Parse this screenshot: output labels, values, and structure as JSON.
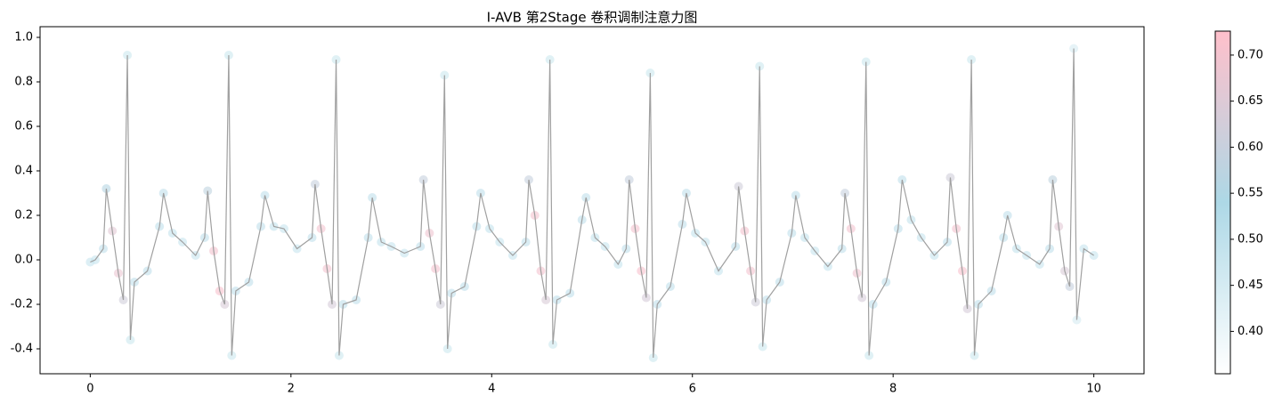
{
  "chart_data": {
    "type": "line",
    "title": "I-AVB 第2Stage 卷积调制注意力图",
    "line_color": "#a0a0a0",
    "colormap": [
      "#ffffff",
      "#add8e6",
      "#ffc0cb"
    ],
    "xlim": [
      -0.5,
      10.5
    ],
    "ylim": [
      -0.512,
      1.048
    ],
    "xticks": [
      0,
      2,
      4,
      6,
      8,
      10
    ],
    "yticks": [
      {
        "value": -0.4,
        "label": "-0.4"
      },
      {
        "value": -0.2,
        "label": "-0.2"
      },
      {
        "value": 0,
        "label": "0.0"
      },
      {
        "value": 0.2,
        "label": "0.2"
      },
      {
        "value": 0.4,
        "label": "0.4"
      },
      {
        "value": 0.6,
        "label": "0.6"
      },
      {
        "value": 0.8,
        "label": "0.8"
      },
      {
        "value": 1.0,
        "label": "1.0"
      }
    ],
    "clim": [
      0.354,
      0.726
    ],
    "cticks": [
      {
        "value": 0.4,
        "label": "0.40"
      },
      {
        "value": 0.45,
        "label": "0.45"
      },
      {
        "value": 0.5,
        "label": "0.50"
      },
      {
        "value": 0.55,
        "label": "0.55"
      },
      {
        "value": 0.6,
        "label": "0.60"
      },
      {
        "value": 0.65,
        "label": "0.65"
      },
      {
        "value": 0.7,
        "label": "0.70"
      }
    ],
    "x": [
      0,
      0.05,
      0.13,
      0.16,
      0.22,
      0.28,
      0.33,
      0.37,
      0.4,
      0.44,
      0.57,
      0.69,
      0.73,
      0.82,
      0.92,
      1.05,
      1.14,
      1.17,
      1.23,
      1.29,
      1.34,
      1.38,
      1.41,
      1.45,
      1.58,
      1.7,
      1.74,
      1.83,
      1.93,
      2.06,
      2.21,
      2.24,
      2.3,
      2.36,
      2.41,
      2.45,
      2.48,
      2.52,
      2.65,
      2.77,
      2.81,
      2.9,
      3.0,
      3.13,
      3.29,
      3.32,
      3.38,
      3.44,
      3.49,
      3.53,
      3.56,
      3.6,
      3.73,
      3.85,
      3.89,
      3.98,
      4.08,
      4.21,
      4.34,
      4.37,
      4.43,
      4.49,
      4.54,
      4.58,
      4.61,
      4.65,
      4.78,
      4.9,
      4.94,
      5.03,
      5.13,
      5.26,
      5.34,
      5.37,
      5.43,
      5.49,
      5.54,
      5.58,
      5.61,
      5.65,
      5.78,
      5.9,
      5.94,
      6.03,
      6.13,
      6.26,
      6.43,
      6.46,
      6.52,
      6.58,
      6.63,
      6.67,
      6.7,
      6.74,
      6.87,
      6.99,
      7.03,
      7.12,
      7.22,
      7.35,
      7.49,
      7.52,
      7.58,
      7.64,
      7.69,
      7.73,
      7.76,
      7.8,
      7.93,
      8.05,
      8.09,
      8.18,
      8.28,
      8.41,
      8.54,
      8.57,
      8.63,
      8.69,
      8.74,
      8.78,
      8.81,
      8.85,
      8.98,
      9.1,
      9.14,
      9.23,
      9.33,
      9.46,
      9.56,
      9.59,
      9.65,
      9.71,
      9.76,
      9.8,
      9.83,
      9.9,
      10.0
    ],
    "y": [
      -0.01,
      0.0,
      0.05,
      0.32,
      0.13,
      -0.06,
      -0.18,
      0.92,
      -0.36,
      -0.1,
      -0.05,
      0.15,
      0.3,
      0.12,
      0.08,
      0.02,
      0.1,
      0.31,
      0.04,
      -0.14,
      -0.2,
      0.92,
      -0.43,
      -0.14,
      -0.1,
      0.15,
      0.29,
      0.15,
      0.14,
      0.05,
      0.1,
      0.34,
      0.14,
      -0.04,
      -0.2,
      0.9,
      -0.43,
      -0.2,
      -0.18,
      0.1,
      0.28,
      0.08,
      0.06,
      0.03,
      0.06,
      0.36,
      0.12,
      -0.04,
      -0.2,
      0.83,
      -0.4,
      -0.15,
      -0.12,
      0.15,
      0.3,
      0.14,
      0.08,
      0.02,
      0.08,
      0.36,
      0.2,
      -0.05,
      -0.18,
      0.9,
      -0.38,
      -0.18,
      -0.15,
      0.18,
      0.28,
      0.1,
      0.06,
      -0.02,
      0.05,
      0.36,
      0.14,
      -0.05,
      -0.17,
      0.84,
      -0.44,
      -0.2,
      -0.12,
      0.16,
      0.3,
      0.12,
      0.08,
      -0.05,
      0.06,
      0.33,
      0.13,
      -0.05,
      -0.19,
      0.87,
      -0.39,
      -0.18,
      -0.1,
      0.12,
      0.29,
      0.1,
      0.04,
      -0.03,
      0.05,
      0.3,
      0.14,
      -0.06,
      -0.17,
      0.89,
      -0.43,
      -0.2,
      -0.1,
      0.14,
      0.36,
      0.18,
      0.1,
      0.02,
      0.08,
      0.37,
      0.14,
      -0.05,
      -0.22,
      0.9,
      -0.43,
      -0.2,
      -0.14,
      0.1,
      0.2,
      0.05,
      0.02,
      -0.02,
      0.05,
      0.36,
      0.15,
      -0.05,
      -0.12,
      0.95,
      -0.27,
      0.05,
      0.02
    ],
    "attention": [
      0.48,
      0.48,
      0.5,
      0.56,
      0.66,
      0.68,
      0.62,
      0.47,
      0.47,
      0.5,
      0.5,
      0.5,
      0.5,
      0.49,
      0.48,
      0.48,
      0.5,
      0.58,
      0.7,
      0.71,
      0.64,
      0.47,
      0.47,
      0.5,
      0.5,
      0.5,
      0.5,
      0.49,
      0.48,
      0.48,
      0.5,
      0.6,
      0.7,
      0.7,
      0.63,
      0.47,
      0.47,
      0.5,
      0.5,
      0.5,
      0.5,
      0.49,
      0.48,
      0.48,
      0.5,
      0.6,
      0.69,
      0.7,
      0.62,
      0.47,
      0.47,
      0.5,
      0.5,
      0.5,
      0.5,
      0.49,
      0.48,
      0.48,
      0.5,
      0.6,
      0.7,
      0.7,
      0.64,
      0.47,
      0.47,
      0.5,
      0.5,
      0.5,
      0.5,
      0.49,
      0.48,
      0.48,
      0.5,
      0.6,
      0.7,
      0.71,
      0.63,
      0.47,
      0.47,
      0.5,
      0.5,
      0.5,
      0.5,
      0.49,
      0.48,
      0.48,
      0.5,
      0.62,
      0.7,
      0.7,
      0.62,
      0.47,
      0.47,
      0.5,
      0.5,
      0.5,
      0.5,
      0.49,
      0.48,
      0.48,
      0.5,
      0.6,
      0.7,
      0.69,
      0.63,
      0.47,
      0.47,
      0.5,
      0.5,
      0.5,
      0.5,
      0.49,
      0.48,
      0.48,
      0.5,
      0.62,
      0.7,
      0.71,
      0.63,
      0.47,
      0.47,
      0.5,
      0.5,
      0.5,
      0.5,
      0.49,
      0.48,
      0.48,
      0.5,
      0.58,
      0.66,
      0.64,
      0.6,
      0.45,
      0.45,
      0.48,
      0.48
    ]
  }
}
